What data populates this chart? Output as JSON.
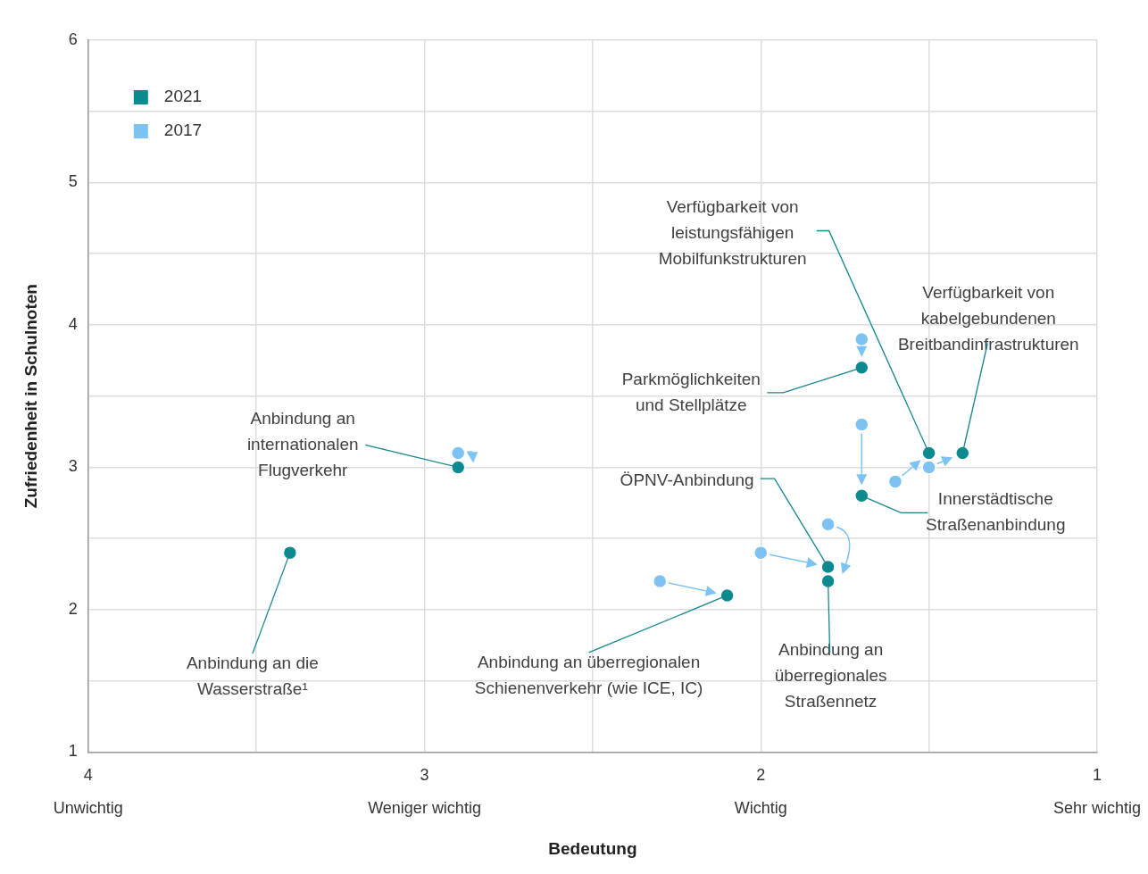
{
  "chart_data": {
    "type": "scatter",
    "xlabel": "Bedeutung",
    "ylabel": "Zufriedenheit in Schulnoten",
    "xlim": [
      4,
      1
    ],
    "xticks": [
      {
        "value": 4,
        "label": "4\nUnwichtig"
      },
      {
        "value": 3.5,
        "label": null
      },
      {
        "value": 3,
        "label": "3\nWeniger wichtig"
      },
      {
        "value": 2.5,
        "label": null
      },
      {
        "value": 2,
        "label": "2\nWichtig"
      },
      {
        "value": 1.5,
        "label": null
      },
      {
        "value": 1,
        "label": "1\nSehr wichtig"
      }
    ],
    "ylim": [
      1,
      6
    ],
    "yticks": [
      1,
      {
        "value": 1.5,
        "label": null
      },
      2,
      {
        "value": 2.5,
        "label": null
      },
      3,
      {
        "value": 3.5,
        "label": null
      },
      4,
      {
        "value": 4.5,
        "label": null
      },
      5,
      {
        "value": 5.5,
        "label": null
      },
      6
    ],
    "grid": true,
    "legend": "top left",
    "marker": "circle",
    "series": [
      {
        "name": "2021",
        "color": "#0b8a8f",
        "x": [
          3.4,
          2.9,
          2.1,
          1.8,
          1.8,
          1.7,
          1.7,
          1.5,
          1.4
        ],
        "values": [
          2.4,
          3.0,
          2.1,
          2.3,
          2.2,
          2.8,
          3.7,
          3.1,
          3.1
        ]
      },
      {
        "name": "2017",
        "color": "#7cc2f2",
        "x": [
          null,
          2.9,
          2.3,
          2.0,
          1.8,
          1.7,
          1.7,
          1.6,
          1.5
        ],
        "values": [
          null,
          3.1,
          2.2,
          2.4,
          2.6,
          3.3,
          3.9,
          2.9,
          3.0
        ]
      }
    ],
    "annotations": [
      {
        "text": "Anbindung an die\nWasserstraße¹",
        "x": 3.4,
        "y": 2.4
      },
      {
        "text": "Anbindung an\ninternationalen\nFlugverkehr",
        "x": 2.9,
        "y": 3.0
      },
      {
        "text": "Anbindung an überregionalen\nSchienenverkehr (wie ICE, IC)",
        "x": 2.1,
        "y": 2.1
      },
      {
        "text": "ÖPNV-Anbindung",
        "x": 1.8,
        "y": 2.3
      },
      {
        "text": "Anbindung an\nüberregionales\nStraßennetz",
        "x": 1.8,
        "y": 2.2
      },
      {
        "text": "Innerstädtische\nStraßenanbindung",
        "x": 1.7,
        "y": 2.8
      },
      {
        "text": "Parkmöglichkeiten\nund Stellplätze",
        "x": 1.7,
        "y": 3.7
      },
      {
        "text": "Verfügbarkeit von\nleistungsfähigen\nMobilfunkstrukturen",
        "x": 1.5,
        "y": 3.1
      },
      {
        "text": "Verfügbarkeit von\nkabelgebundenen\nBreitbandinfrastrukturen",
        "x": 1.4,
        "y": 3.1
      }
    ]
  }
}
